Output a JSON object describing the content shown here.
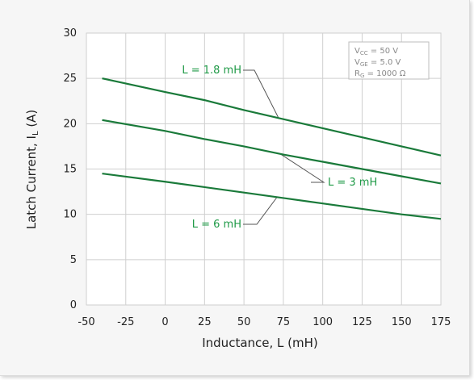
{
  "colors": {
    "background": "#f6f6f6",
    "grid": "#cfcfcf",
    "series": "#1a7a3a",
    "label_text": "#1f9a47",
    "leader": "#555555",
    "box": "#bdbdbd"
  },
  "conditions": [
    {
      "main": "V",
      "sub": "CC",
      "rest": " = 50 V"
    },
    {
      "main": "V",
      "sub": "GE",
      "rest": " = 5.0 V"
    },
    {
      "main": "R",
      "sub": "G",
      "rest": " = 1000 Ω"
    }
  ],
  "chart_data": {
    "type": "line",
    "xlabel": "Inductance, L (mH)",
    "ylabel_main": "Latch Current, I",
    "ylabel_sub": "L",
    "ylabel_tail": " (A)",
    "xlim": [
      -50,
      175
    ],
    "ylim": [
      0,
      30
    ],
    "xticks": [
      -50,
      -25,
      0,
      25,
      50,
      75,
      100,
      125,
      150,
      175
    ],
    "xtick_labels": [
      "-50",
      "-25",
      "0",
      "25",
      "50",
      "75",
      "100",
      "125",
      "150",
      "175"
    ],
    "yticks": [
      0,
      5,
      10,
      15,
      20,
      25,
      30
    ],
    "ytick_labels": [
      "0",
      "5",
      "10",
      "15",
      "20",
      "25",
      "30"
    ],
    "grid": true,
    "series": [
      {
        "name": "L = 1.8 mH",
        "x": [
          -40,
          0,
          25,
          50,
          75,
          100,
          125,
          150,
          175
        ],
        "y": [
          25.0,
          23.5,
          22.6,
          21.5,
          20.5,
          19.5,
          18.5,
          17.5,
          16.5
        ]
      },
      {
        "name": "L = 3 mH",
        "x": [
          -40,
          0,
          25,
          50,
          75,
          100,
          125,
          150,
          175
        ],
        "y": [
          20.4,
          19.2,
          18.3,
          17.5,
          16.6,
          15.8,
          15.0,
          14.2,
          13.4
        ]
      },
      {
        "name": "L = 6 mH",
        "x": [
          -40,
          0,
          25,
          50,
          75,
          100,
          125,
          150,
          175
        ],
        "y": [
          14.5,
          13.6,
          13.0,
          12.4,
          11.8,
          11.2,
          10.6,
          10.0,
          9.5
        ]
      }
    ]
  }
}
